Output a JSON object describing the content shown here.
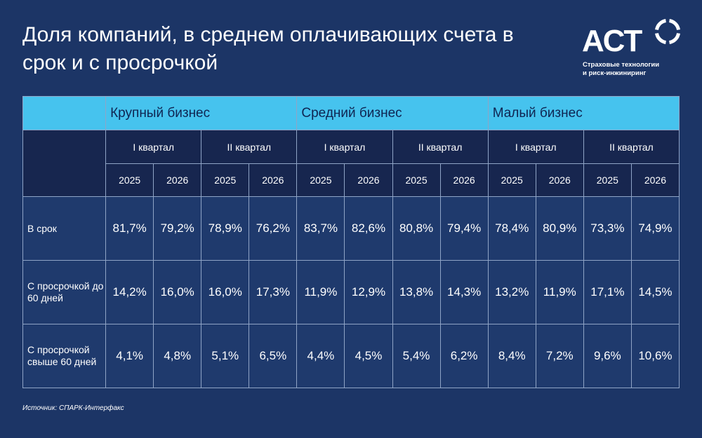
{
  "title": "Доля компаний, в среднем оплачивающих счета в срок и с просрочкой",
  "logo": {
    "name": "АСТ",
    "tagline_line1": "Страховые технологии",
    "tagline_line2": "и риск-инжиниринг"
  },
  "colors": {
    "background": "#1c3566",
    "header_accent": "#46c3ee",
    "header_dark": "#17264f",
    "cell": "#1f3a6d"
  },
  "table": {
    "groups": [
      "Крупный бизнес",
      "Средний бизнес",
      "Малый бизнес"
    ],
    "quarters": [
      "I квартал",
      "II квартал",
      "I квартал",
      "II квартал",
      "I квартал",
      "II квартал"
    ],
    "years": [
      "2025",
      "2026",
      "2025",
      "2026",
      "2025",
      "2026",
      "2025",
      "2026",
      "2025",
      "2026",
      "2025",
      "2026"
    ],
    "rows": [
      {
        "label": "В срок",
        "values": [
          "81,7%",
          "79,2%",
          "78,9%",
          "76,2%",
          "83,7%",
          "82,6%",
          "80,8%",
          "79,4%",
          "78,4%",
          "80,9%",
          "73,3%",
          "74,9%"
        ]
      },
      {
        "label": "С просрочкой до 60 дней",
        "values": [
          "14,2%",
          "16,0%",
          "16,0%",
          "17,3%",
          "11,9%",
          "12,9%",
          "13,8%",
          "14,3%",
          "13,2%",
          "11,9%",
          "17,1%",
          "14,5%"
        ]
      },
      {
        "label": "С просрочкой свыше 60 дней",
        "values": [
          "4,1%",
          "4,8%",
          "5,1%",
          "6,5%",
          "4,4%",
          "4,5%",
          "5,4%",
          "6,2%",
          "8,4%",
          "7,2%",
          "9,6%",
          "10,6%"
        ]
      }
    ]
  },
  "source": "Источник: СПАРК-Интерфакс"
}
